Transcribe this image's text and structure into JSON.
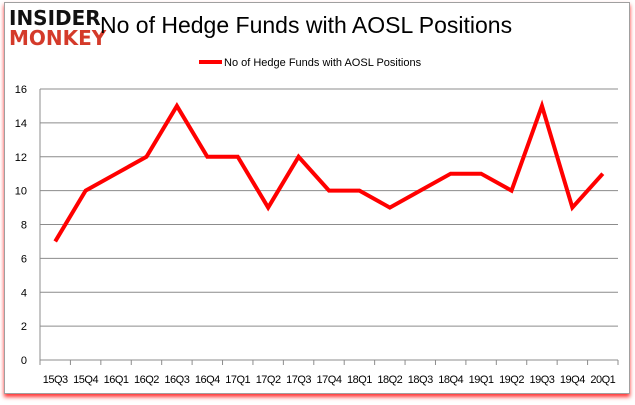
{
  "logo": {
    "line1": "INSIDER",
    "line2": "MONKEY"
  },
  "chart_data": {
    "type": "line",
    "title": "No of Hedge Funds with AOSL Positions",
    "xlabel": "",
    "ylabel": "",
    "categories": [
      "15Q3",
      "15Q4",
      "16Q1",
      "16Q2",
      "16Q3",
      "16Q4",
      "17Q1",
      "17Q2",
      "17Q3",
      "17Q4",
      "18Q1",
      "18Q2",
      "18Q3",
      "18Q4",
      "19Q1",
      "19Q2",
      "19Q3",
      "19Q4",
      "20Q1"
    ],
    "series": [
      {
        "name": "No of Hedge Funds with AOSL Positions",
        "color": "#ff0000",
        "values": [
          7,
          10,
          11,
          12,
          15,
          12,
          12,
          9,
          12,
          10,
          10,
          9,
          10,
          11,
          11,
          10,
          15,
          9,
          11
        ]
      }
    ],
    "ylim": [
      0,
      16
    ],
    "yticks": [
      0,
      2,
      4,
      6,
      8,
      10,
      12,
      14,
      16
    ],
    "grid": true,
    "legend": "top-center"
  }
}
